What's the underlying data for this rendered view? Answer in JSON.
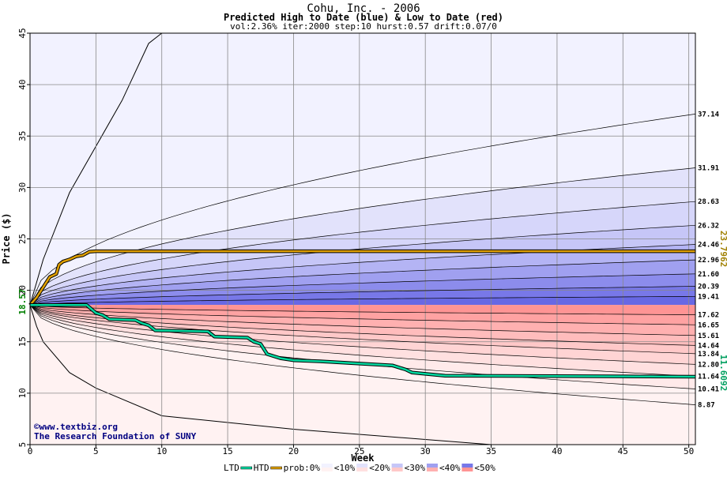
{
  "chart_data": {
    "type": "area",
    "title": "Cohu, Inc. - 2006",
    "subtitle": "Predicted High to Date (blue) &  Low to Date (red)",
    "params": "vol:2.36% iter:2000 step:10 hurst:0.57 drift:0.07/0",
    "xlabel": "Week",
    "ylabel": "Price ($)",
    "xlim": [
      0,
      50.5
    ],
    "ylim": [
      5,
      45
    ],
    "x_ticks": [
      0,
      5,
      10,
      15,
      20,
      25,
      30,
      35,
      40,
      45,
      50
    ],
    "y_ticks": [
      5,
      10,
      15,
      20,
      25,
      30,
      35,
      40,
      45
    ],
    "start_price": 18.57,
    "start_price_label": "18.57",
    "high_series": {
      "name": "HTD",
      "color": "#e0a000",
      "end_label": "23.7962",
      "points": [
        [
          0,
          18.57
        ],
        [
          0.5,
          19.3
        ],
        [
          1,
          20.3
        ],
        [
          1.5,
          21.3
        ],
        [
          2,
          21.6
        ],
        [
          2.2,
          22.5
        ],
        [
          2.5,
          22.8
        ],
        [
          3,
          23.0
        ],
        [
          3.5,
          23.3
        ],
        [
          4,
          23.4
        ],
        [
          4.5,
          23.75
        ],
        [
          5,
          23.8
        ],
        [
          50.5,
          23.8
        ]
      ]
    },
    "low_series": {
      "name": "LTD",
      "color": "#00d8a0",
      "end_label": "11.6092",
      "points": [
        [
          0,
          18.57
        ],
        [
          4.3,
          18.57
        ],
        [
          5,
          17.8
        ],
        [
          5.5,
          17.6
        ],
        [
          6,
          17.2
        ],
        [
          8,
          17.1
        ],
        [
          8.5,
          16.8
        ],
        [
          9,
          16.6
        ],
        [
          9.5,
          16.1
        ],
        [
          13.5,
          16.0
        ],
        [
          14,
          15.5
        ],
        [
          16.5,
          15.4
        ],
        [
          17,
          15.0
        ],
        [
          17.5,
          14.8
        ],
        [
          18,
          13.8
        ],
        [
          19,
          13.4
        ],
        [
          20,
          13.2
        ],
        [
          22,
          13.1
        ],
        [
          27.5,
          12.7
        ],
        [
          28.5,
          12.3
        ],
        [
          29,
          12.0
        ],
        [
          31.5,
          11.7
        ],
        [
          50.5,
          11.6
        ]
      ]
    },
    "envelope_upper": [
      [
        0,
        18.57
      ],
      [
        1,
        23.0
      ],
      [
        3,
        29.5
      ],
      [
        5,
        34.0
      ],
      [
        7,
        38.5
      ],
      [
        9,
        44.0
      ],
      [
        10,
        45.0
      ]
    ],
    "envelope_lower": [
      [
        0,
        18.57
      ],
      [
        0.5,
        16.5
      ],
      [
        1,
        15.0
      ],
      [
        3,
        12.0
      ],
      [
        5,
        10.5
      ],
      [
        10,
        7.8
      ],
      [
        20,
        6.5
      ],
      [
        35,
        5.0
      ]
    ],
    "high_bands": [
      {
        "label": "37.14",
        "end": 37.14
      },
      {
        "label": "31.91",
        "end": 31.91
      },
      {
        "label": "28.63",
        "end": 28.63
      },
      {
        "label": "26.32",
        "end": 26.32
      },
      {
        "label": "24.46",
        "end": 24.46
      },
      {
        "label": "22.96",
        "end": 22.96
      },
      {
        "label": "21.60",
        "end": 21.6
      },
      {
        "label": "20.39",
        "end": 20.39
      },
      {
        "label": "19.41",
        "end": 19.41
      }
    ],
    "low_bands": [
      {
        "label": "17.62",
        "end": 17.62
      },
      {
        "label": "16.65",
        "end": 16.65
      },
      {
        "label": "15.61",
        "end": 15.61
      },
      {
        "label": "14.64",
        "end": 14.64
      },
      {
        "label": "13.84",
        "end": 13.84
      },
      {
        "label": "12.80",
        "end": 12.8
      },
      {
        "label": "11.64",
        "end": 11.64
      },
      {
        "label": "10.41",
        "end": 10.41
      },
      {
        "label": "8.87",
        "end": 8.87
      }
    ],
    "band_colors_high": [
      "#f2f2ff",
      "#e2e2fb",
      "#d6d6fa",
      "#c6c6f7",
      "#b4b4f4",
      "#a0a0f0",
      "#8c8cec",
      "#7878e8",
      "#6868e4"
    ],
    "band_colors_low": [
      "#ff9494",
      "#ffa2a2",
      "#ffb0b0",
      "#ffbcbc",
      "#ffc8c8",
      "#ffd4d4",
      "#ffe0e0",
      "#ffeaea",
      "#fff2f2"
    ],
    "legend": {
      "ltd": "LTD",
      "htd": "HTD",
      "prob": "prob:0%",
      "items": [
        "<10%",
        "<20%",
        "<30%",
        "<40%",
        "<50%"
      ],
      "colors": [
        "#f2f2ff",
        "#e2e2fb",
        "#c6c6f7",
        "#a0a0f0",
        "#7878e8"
      ],
      "colors_red": [
        "#fff2f2",
        "#ffe0e0",
        "#ffc8c8",
        "#ffb0b0",
        "#ff9494"
      ]
    },
    "credits": [
      "©www.textbiz.org",
      "The Research Foundation of SUNY"
    ],
    "grid": true
  }
}
